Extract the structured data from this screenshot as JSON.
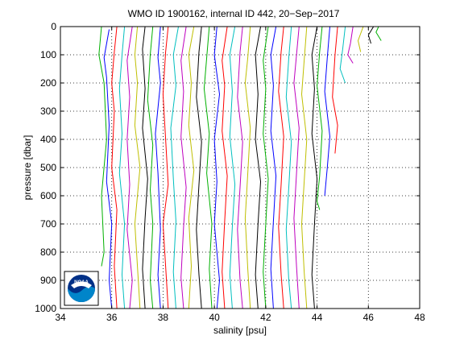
{
  "chart_data": {
    "type": "line",
    "title": "WMO ID 1900162, internal ID 442, 20−Sep−2017",
    "xlabel": "salinity [psu]",
    "ylabel": "pressure [dbar]",
    "xlim": [
      34,
      48
    ],
    "ylim": [
      0,
      1000
    ],
    "y_reversed": true,
    "grid": "dotted",
    "x_ticks": [
      "34",
      "36",
      "38",
      "40",
      "42",
      "44",
      "46",
      "48"
    ],
    "y_ticks": [
      "0",
      "100",
      "200",
      "300",
      "400",
      "500",
      "600",
      "700",
      "800",
      "900",
      "1000"
    ],
    "series_colors": [
      "#00b000",
      "#0000ff",
      "#ff0000",
      "#00bfbf",
      "#bf00bf",
      "#bfbf00",
      "#000000"
    ],
    "profiles": [
      {
        "x": [
          35.6,
          35.5,
          35.7,
          35.8,
          35.6,
          35.7,
          35.6
        ],
        "y": [
          0,
          100,
          200,
          400,
          600,
          800,
          850
        ]
      },
      {
        "x": [
          35.9,
          35.7,
          35.8,
          35.9,
          35.8,
          36.0,
          35.9,
          36.0
        ],
        "y": [
          10,
          110,
          180,
          350,
          550,
          700,
          900,
          1000
        ]
      },
      {
        "x": [
          36.2,
          36.1,
          36.0,
          36.1,
          36.0,
          36.2,
          36.1,
          36.2
        ],
        "y": [
          0,
          90,
          200,
          300,
          500,
          650,
          850,
          1000
        ]
      },
      {
        "x": [
          36.5,
          36.4,
          36.3,
          36.4,
          36.3,
          36.5,
          36.4,
          36.5
        ],
        "y": [
          0,
          100,
          220,
          380,
          520,
          700,
          880,
          1000
        ]
      },
      {
        "x": [
          36.8,
          36.6,
          36.7,
          36.6,
          36.7,
          36.6,
          36.8,
          36.7
        ],
        "y": [
          0,
          120,
          250,
          400,
          560,
          720,
          900,
          1000
        ]
      },
      {
        "x": [
          37.0,
          36.9,
          37.0,
          36.9,
          37.1,
          36.9,
          37.0,
          37.1
        ],
        "y": [
          0,
          100,
          200,
          350,
          500,
          700,
          850,
          1000
        ]
      },
      {
        "x": [
          37.3,
          37.2,
          37.3,
          37.2,
          37.4,
          37.3,
          37.2,
          37.3
        ],
        "y": [
          0,
          80,
          220,
          360,
          540,
          680,
          860,
          1000
        ]
      },
      {
        "x": [
          37.6,
          37.5,
          37.4,
          37.6,
          37.5,
          37.6,
          37.5,
          37.6
        ],
        "y": [
          0,
          100,
          260,
          420,
          580,
          700,
          900,
          1000
        ]
      },
      {
        "x": [
          37.9,
          37.8,
          37.9,
          37.7,
          37.8,
          37.9,
          37.8,
          37.9
        ],
        "y": [
          0,
          110,
          200,
          380,
          520,
          720,
          880,
          1000
        ]
      },
      {
        "x": [
          38.2,
          38.1,
          38.0,
          38.1,
          38.2,
          38.0,
          38.1,
          38.2
        ],
        "y": [
          0,
          90,
          240,
          400,
          560,
          700,
          850,
          1000
        ]
      },
      {
        "x": [
          38.6,
          38.4,
          38.5,
          38.3,
          38.4,
          38.5,
          38.4,
          38.5
        ],
        "y": [
          0,
          100,
          210,
          360,
          540,
          690,
          870,
          1000
        ]
      },
      {
        "x": [
          38.9,
          38.7,
          38.8,
          38.7,
          38.9,
          38.8,
          38.7,
          38.8
        ],
        "y": [
          0,
          120,
          230,
          390,
          570,
          710,
          890,
          1000
        ]
      },
      {
        "x": [
          39.2,
          39.0,
          39.1,
          39.0,
          39.2,
          39.0,
          39.1,
          39.0
        ],
        "y": [
          0,
          100,
          200,
          350,
          510,
          680,
          850,
          1000
        ]
      },
      {
        "x": [
          39.5,
          39.4,
          39.3,
          39.5,
          39.4,
          39.3,
          39.4,
          39.5
        ],
        "y": [
          0,
          90,
          250,
          410,
          560,
          720,
          880,
          1000
        ]
      },
      {
        "x": [
          39.8,
          39.7,
          39.6,
          39.8,
          39.7,
          39.9,
          39.8,
          39.9
        ],
        "y": [
          0,
          110,
          220,
          380,
          520,
          700,
          860,
          1000
        ]
      },
      {
        "x": [
          40.1,
          40.0,
          40.2,
          40.0,
          40.1,
          40.0,
          40.2,
          40.1
        ],
        "y": [
          0,
          100,
          240,
          400,
          550,
          700,
          900,
          1000
        ]
      },
      {
        "x": [
          40.5,
          40.3,
          40.4,
          40.3,
          40.5,
          40.4,
          40.3,
          40.4
        ],
        "y": [
          0,
          120,
          210,
          370,
          530,
          690,
          870,
          1000
        ]
      },
      {
        "x": [
          40.8,
          40.6,
          40.7,
          40.6,
          40.8,
          40.7,
          40.6,
          40.7
        ],
        "y": [
          0,
          100,
          230,
          390,
          560,
          710,
          880,
          1000
        ]
      },
      {
        "x": [
          41.1,
          41.0,
          40.9,
          41.1,
          41.0,
          40.9,
          41.0,
          41.1
        ],
        "y": [
          0,
          90,
          250,
          410,
          570,
          720,
          900,
          1000
        ]
      },
      {
        "x": [
          41.4,
          41.3,
          41.2,
          41.4,
          41.3,
          41.2,
          41.3,
          41.4
        ],
        "y": [
          0,
          110,
          200,
          360,
          520,
          680,
          860,
          1000
        ]
      },
      {
        "x": [
          41.8,
          41.6,
          41.7,
          41.6,
          41.8,
          41.7,
          41.6,
          41.7
        ],
        "y": [
          0,
          100,
          240,
          400,
          550,
          700,
          880,
          1000
        ]
      },
      {
        "x": [
          42.1,
          41.9,
          42.0,
          41.9,
          42.1,
          42.0,
          41.9,
          42.0
        ],
        "y": [
          0,
          120,
          220,
          380,
          540,
          700,
          870,
          1000
        ]
      },
      {
        "x": [
          42.4,
          42.2,
          42.3,
          42.2,
          42.4,
          42.3,
          42.2,
          42.3
        ],
        "y": [
          0,
          100,
          210,
          370,
          530,
          690,
          860,
          1000
        ]
      },
      {
        "x": [
          42.7,
          42.6,
          42.5,
          42.7,
          42.6,
          42.5,
          42.6,
          42.7
        ],
        "y": [
          0,
          90,
          230,
          390,
          560,
          710,
          880,
          1000
        ]
      },
      {
        "x": [
          43.0,
          42.9,
          42.8,
          43.0,
          42.9,
          42.8,
          42.9,
          43.0
        ],
        "y": [
          0,
          110,
          250,
          410,
          570,
          720,
          900,
          1000
        ]
      },
      {
        "x": [
          43.3,
          43.2,
          43.1,
          43.3,
          43.2,
          43.1,
          43.2,
          43.3
        ],
        "y": [
          0,
          100,
          200,
          360,
          520,
          680,
          850,
          1000
        ]
      },
      {
        "x": [
          43.6,
          43.5,
          43.4,
          43.6,
          43.5,
          43.4,
          43.5,
          43.6
        ],
        "y": [
          0,
          120,
          240,
          400,
          550,
          700,
          870,
          1000
        ]
      },
      {
        "x": [
          44.0,
          43.8,
          43.9,
          43.8,
          44.0,
          43.9,
          43.8,
          43.9
        ],
        "y": [
          0,
          100,
          220,
          380,
          540,
          700,
          880,
          1000
        ]
      },
      {
        "x": [
          44.2,
          44.1,
          44.0,
          44.2,
          44.1,
          44.0,
          44.1
        ],
        "y": [
          0,
          90,
          210,
          370,
          530,
          620,
          650
        ]
      },
      {
        "x": [
          44.5,
          44.4,
          44.3,
          44.5,
          44.4,
          44.3
        ],
        "y": [
          0,
          110,
          230,
          390,
          500,
          600
        ]
      },
      {
        "x": [
          44.8,
          44.7,
          44.6,
          44.8,
          44.7
        ],
        "y": [
          0,
          100,
          250,
          350,
          450
        ]
      },
      {
        "x": [
          45.1,
          45.0,
          44.9,
          45.1
        ],
        "y": [
          0,
          80,
          150,
          200
        ]
      },
      {
        "x": [
          45.4,
          45.3,
          45.2,
          45.4
        ],
        "y": [
          0,
          60,
          100,
          130
        ]
      },
      {
        "x": [
          45.8,
          45.6,
          45.7
        ],
        "y": [
          0,
          50,
          90
        ]
      },
      {
        "x": [
          46.2,
          46.0,
          46.1
        ],
        "y": [
          0,
          30,
          60
        ]
      },
      {
        "x": [
          46.4,
          46.3,
          46.5
        ],
        "y": [
          0,
          20,
          50
        ]
      }
    ]
  },
  "logo": {
    "text": "NOAA",
    "colors": {
      "blue": "#003087",
      "light_blue": "#0085ca",
      "white": "#ffffff"
    }
  }
}
